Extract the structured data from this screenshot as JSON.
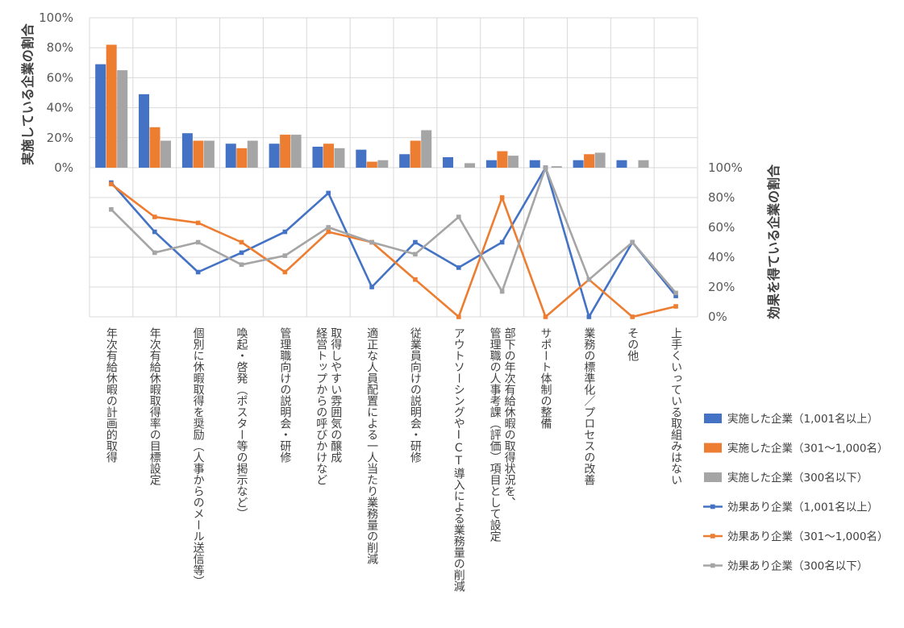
{
  "chart_data": {
    "type": "bar+line",
    "categories": [
      "年次有給休暇の計画的取得",
      "年次有給休暇取得率の目標設定",
      "個別に休暇取得を奨励（人事からのメール送信等）",
      "喚起・啓発（ポスター等の掲示など）",
      "管理職向けの説明会・研修",
      "経営トップからの呼びかけなど|取得しやすい雰囲気の醸成",
      "適正な人員配置による一人当たり業務量の削減",
      "従業員向けの説明会・研修",
      "アウトソーシングやICT導入による業務量の削減",
      "管理職の人事考課（評価）項目として設定|部下の年次有給休暇の取得状況を、",
      "サポート体制の整備",
      "業務の標準化／プロセスの改善",
      "その他",
      "上手くいっている取組みはない"
    ],
    "bar_axis": {
      "label": "実施している企業の割合",
      "ylim": [
        0,
        100
      ],
      "ticks": [
        "0%",
        "20%",
        "40%",
        "60%",
        "80%",
        "100%"
      ]
    },
    "line_axis": {
      "label": "効果を得ている企業の割合",
      "ylim": [
        0,
        100
      ],
      "ticks": [
        "0%",
        "20%",
        "40%",
        "60%",
        "80%",
        "100%"
      ]
    },
    "bar_series": [
      {
        "name": "実施した企業（1,001名以上）",
        "color": "#4472C4",
        "values": [
          69,
          49,
          23,
          16,
          16,
          14,
          12,
          9,
          7,
          5,
          5,
          5,
          5,
          0
        ]
      },
      {
        "name": "実施した企業（301～1,000名）",
        "color": "#ED7D31",
        "values": [
          82,
          27,
          18,
          13,
          22,
          16,
          4,
          18,
          0,
          11,
          0,
          9,
          0,
          0
        ]
      },
      {
        "name": "実施した企業（300名以下）",
        "color": "#A5A5A5",
        "values": [
          65,
          18,
          18,
          18,
          22,
          13,
          5,
          25,
          3,
          8,
          1,
          10,
          5,
          0
        ]
      }
    ],
    "line_series": [
      {
        "name": "効果あり企業（1,001名以上）",
        "color": "#4472C4",
        "values": [
          90,
          57,
          30,
          43,
          57,
          83,
          20,
          50,
          33,
          50,
          100,
          0,
          50,
          14
        ]
      },
      {
        "name": "効果あり企業（301～1,000名）",
        "color": "#ED7D31",
        "values": [
          89,
          67,
          63,
          50,
          30,
          57,
          50,
          25,
          0,
          80,
          0,
          25,
          0,
          7
        ]
      },
      {
        "name": "効果あり企業（300名以下）",
        "color": "#A5A5A5",
        "values": [
          72,
          43,
          50,
          35,
          41,
          60,
          50,
          42,
          67,
          17,
          100,
          25,
          50,
          16
        ]
      }
    ],
    "grid": true,
    "legend_position": "right"
  }
}
